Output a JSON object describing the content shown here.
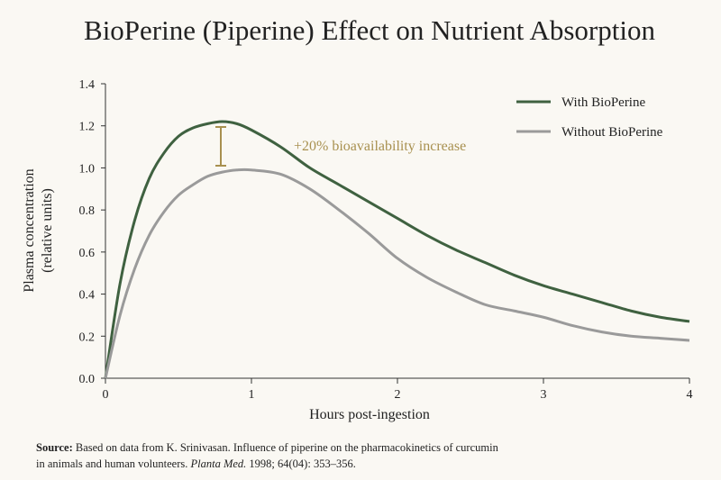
{
  "chart_data": {
    "type": "line",
    "title": "BioPerine (Piperine) Effect on Nutrient Absorption",
    "x_label": "Hours post-ingestion",
    "y_label": [
      "Plasma concentration",
      "(relative units)"
    ],
    "annotation": "+20% bioavailability increase",
    "x": [
      0,
      0.1,
      0.2,
      0.3,
      0.4,
      0.5,
      0.6,
      0.7,
      0.8,
      0.9,
      1.0,
      1.2,
      1.4,
      1.6,
      1.8,
      2.0,
      2.2,
      2.4,
      2.6,
      2.8,
      3.0,
      3.2,
      3.4,
      3.6,
      3.8,
      4.0
    ],
    "series": [
      {
        "name": "With BioPerine",
        "color": "#3f6140",
        "values": [
          0,
          0.45,
          0.75,
          0.95,
          1.07,
          1.15,
          1.19,
          1.21,
          1.22,
          1.21,
          1.18,
          1.1,
          1.0,
          0.92,
          0.84,
          0.76,
          0.68,
          0.61,
          0.55,
          0.49,
          0.44,
          0.4,
          0.36,
          0.32,
          0.29,
          0.27
        ]
      },
      {
        "name": "Without BioPerine",
        "color": "#9a9a9a",
        "values": [
          0,
          0.3,
          0.52,
          0.68,
          0.79,
          0.87,
          0.92,
          0.96,
          0.98,
          0.99,
          0.99,
          0.97,
          0.9,
          0.8,
          0.69,
          0.57,
          0.48,
          0.41,
          0.35,
          0.32,
          0.29,
          0.25,
          0.22,
          0.2,
          0.19,
          0.18
        ]
      }
    ],
    "xlim": [
      0,
      4
    ],
    "xticks": [
      0,
      1,
      2,
      3,
      4
    ],
    "ylim": [
      0,
      1.4
    ],
    "yticks": [
      {
        "value": 0,
        "label": "0.0"
      },
      {
        "value": 0.2,
        "label": "0.2"
      },
      {
        "value": 0.4,
        "label": "0.4"
      },
      {
        "value": 0.6,
        "label": "0.6"
      },
      {
        "value": 0.8,
        "label": "0.8"
      },
      {
        "value": 1.0,
        "label": "1.0"
      },
      {
        "value": 1.2,
        "label": "1.2"
      },
      {
        "value": 1.4,
        "label": "1.4"
      }
    ],
    "legend": "top-right",
    "annotation_color": "#a8904f",
    "source_label": "Source:",
    "source_line1": "Based on data from K. Srinivasan. Influence of piperine on the pharmacokinetics of curcumin",
    "source_line2": "in animals and human volunteers.",
    "source_journal": "Planta Med.",
    "source_citation": "1998; 64(04): 353–356."
  }
}
